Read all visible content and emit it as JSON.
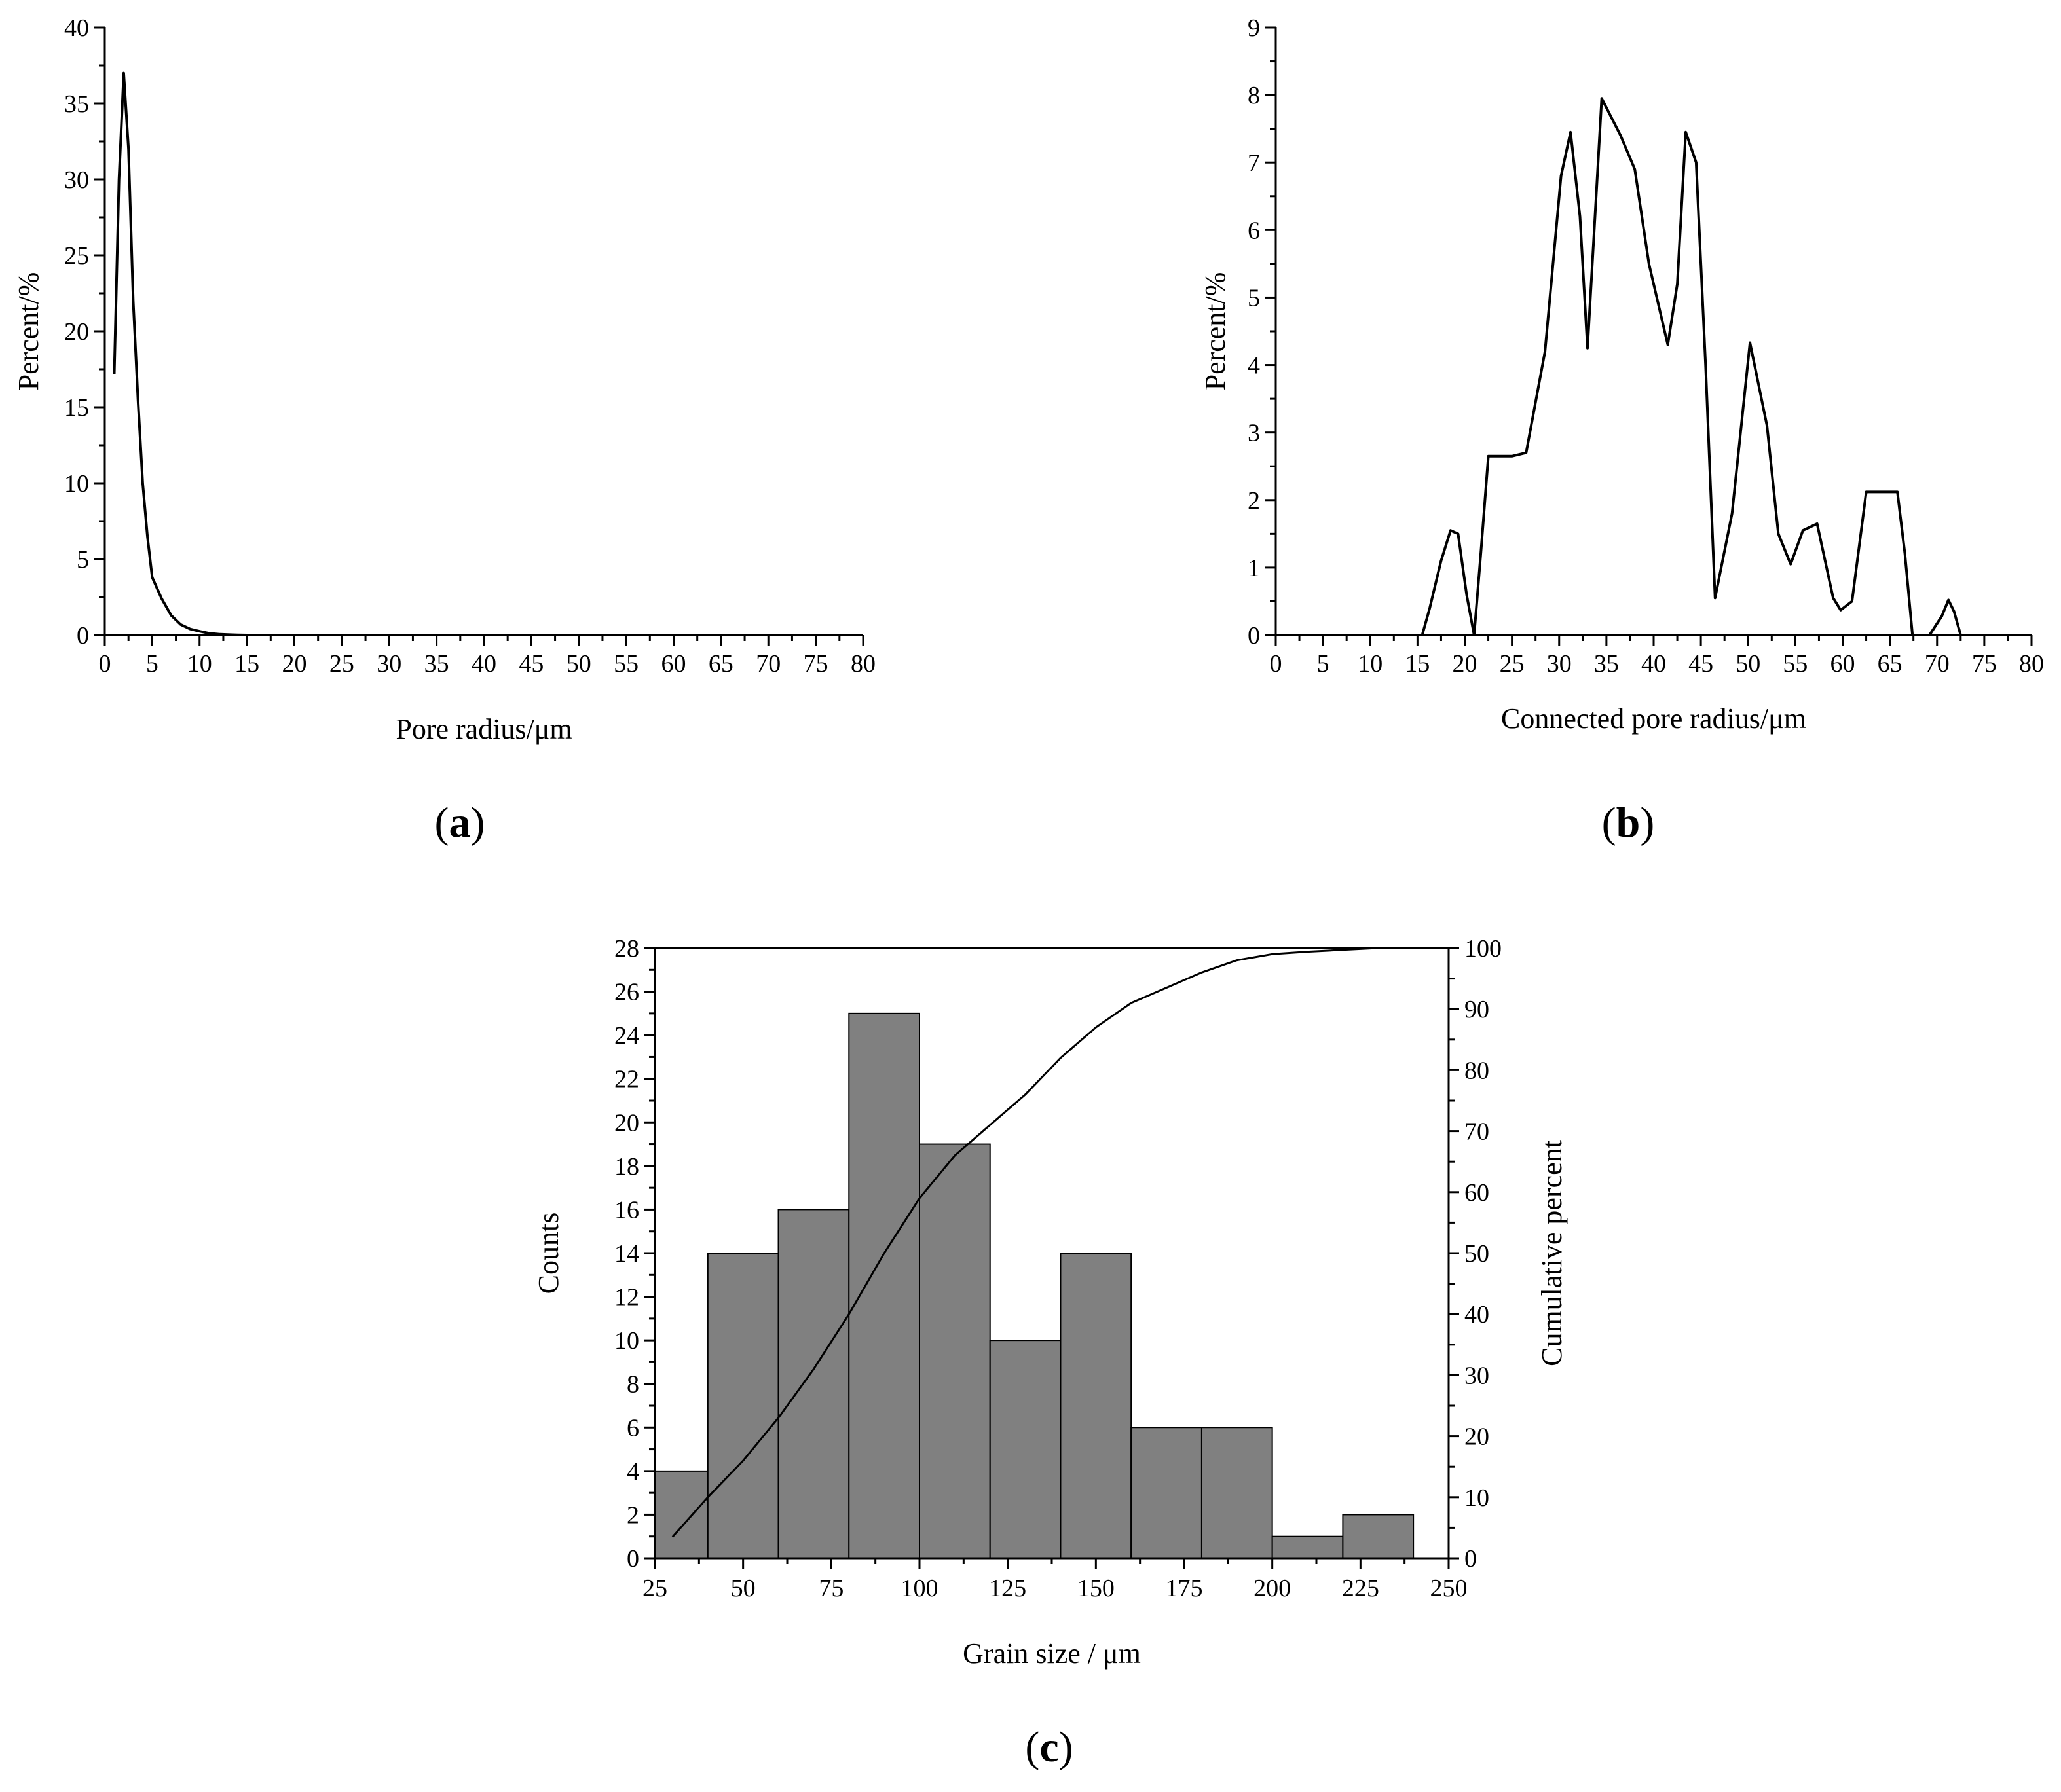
{
  "chart_data": [
    {
      "id": "a",
      "type": "line",
      "panel_label": "a",
      "xlabel": "Pore radius/μm",
      "ylabel": "Percent/%",
      "xlim": [
        0,
        80
      ],
      "ylim": [
        0,
        40
      ],
      "xticks": [
        0,
        5,
        10,
        15,
        20,
        25,
        30,
        35,
        40,
        45,
        50,
        55,
        60,
        65,
        70,
        75,
        80
      ],
      "yticks": [
        0,
        5,
        10,
        15,
        20,
        25,
        30,
        35,
        40
      ],
      "series": [
        {
          "x": [
            1,
            1.5,
            2,
            2.5,
            3,
            3.5,
            4,
            4.5,
            5,
            6,
            7,
            8,
            9,
            10,
            11,
            12,
            13,
            14,
            15,
            16,
            20,
            30,
            40,
            50,
            60,
            70,
            80
          ],
          "y": [
            17.2,
            30,
            37,
            32,
            22,
            15.5,
            10,
            6.5,
            3.8,
            2.4,
            1.3,
            0.7,
            0.4,
            0.25,
            0.12,
            0.06,
            0.03,
            0.01,
            0,
            0,
            0,
            0,
            0,
            0,
            0,
            0,
            0
          ]
        }
      ]
    },
    {
      "id": "b",
      "type": "line",
      "panel_label": "b",
      "xlabel": "Connected pore radius/μm",
      "ylabel": "Percent/%",
      "xlim": [
        0,
        80
      ],
      "ylim": [
        0,
        9
      ],
      "xticks": [
        0,
        5,
        10,
        15,
        20,
        25,
        30,
        35,
        40,
        45,
        50,
        55,
        60,
        65,
        70,
        75,
        80
      ],
      "yticks": [
        0,
        1,
        2,
        3,
        4,
        5,
        6,
        7,
        8,
        9
      ],
      "series": [
        {
          "x": [
            0,
            15.5,
            16.3,
            17.5,
            18.5,
            19.3,
            20.2,
            21,
            21.7,
            22.5,
            25,
            26.5,
            28.5,
            30.2,
            31.2,
            32.2,
            33,
            34,
            34.5,
            36.5,
            38,
            39.5,
            41.5,
            42.5,
            43.4,
            44.5,
            45.5,
            46.5,
            48.3,
            50.2,
            52,
            53.2,
            54.5,
            55.8,
            57.3,
            59,
            59.8,
            61,
            62.5,
            65.8,
            66.6,
            67.4,
            68.5,
            69.2,
            70.5,
            71.2,
            71.8,
            72.5,
            80
          ],
          "y": [
            0,
            0,
            0.4,
            1.1,
            1.55,
            1.5,
            0.6,
            0,
            1.2,
            2.65,
            2.65,
            2.7,
            4.2,
            6.8,
            7.45,
            6.2,
            4.25,
            6.7,
            7.95,
            7.4,
            6.9,
            5.5,
            4.3,
            5.2,
            7.45,
            7,
            4.0,
            0.55,
            1.8,
            4.33,
            3.1,
            1.5,
            1.05,
            1.55,
            1.65,
            0.55,
            0.37,
            0.5,
            2.12,
            2.12,
            1.2,
            0,
            0,
            0,
            0.28,
            0.52,
            0.35,
            0,
            0
          ]
        }
      ]
    },
    {
      "id": "c",
      "type": "bar",
      "panel_label": "c",
      "xlabel": "Grain size / μm",
      "ylabel": "Counts",
      "y2label": "Cumulative percent",
      "xlim": [
        25,
        250
      ],
      "ylim": [
        0,
        28
      ],
      "y2lim": [
        0,
        100
      ],
      "xticks": [
        25,
        50,
        75,
        100,
        125,
        150,
        175,
        200,
        225,
        250
      ],
      "yticks": [
        0,
        2,
        4,
        6,
        8,
        10,
        12,
        14,
        16,
        18,
        20,
        22,
        24,
        26,
        28
      ],
      "y2ticks": [
        0,
        10,
        20,
        30,
        40,
        50,
        60,
        70,
        80,
        90,
        100
      ],
      "bins": [
        {
          "start": 20,
          "end": 40,
          "count": 4
        },
        {
          "start": 40,
          "end": 60,
          "count": 14
        },
        {
          "start": 60,
          "end": 80,
          "count": 16
        },
        {
          "start": 80,
          "end": 100,
          "count": 25
        },
        {
          "start": 100,
          "end": 120,
          "count": 19
        },
        {
          "start": 120,
          "end": 140,
          "count": 10
        },
        {
          "start": 140,
          "end": 160,
          "count": 14
        },
        {
          "start": 160,
          "end": 180,
          "count": 6
        },
        {
          "start": 180,
          "end": 200,
          "count": 6
        },
        {
          "start": 200,
          "end": 220,
          "count": 1
        },
        {
          "start": 220,
          "end": 240,
          "count": 2
        }
      ],
      "cumulative": {
        "x": [
          30,
          40,
          50,
          60,
          70,
          80,
          90,
          100,
          110,
          120,
          130,
          140,
          150,
          160,
          170,
          180,
          190,
          200,
          210,
          220,
          230,
          240
        ],
        "y": [
          3.5,
          10,
          16,
          23,
          31,
          40,
          50,
          59,
          66,
          71,
          76,
          82,
          87,
          91,
          93.5,
          96,
          98,
          99,
          99.4,
          99.7,
          100,
          100
        ]
      }
    }
  ]
}
